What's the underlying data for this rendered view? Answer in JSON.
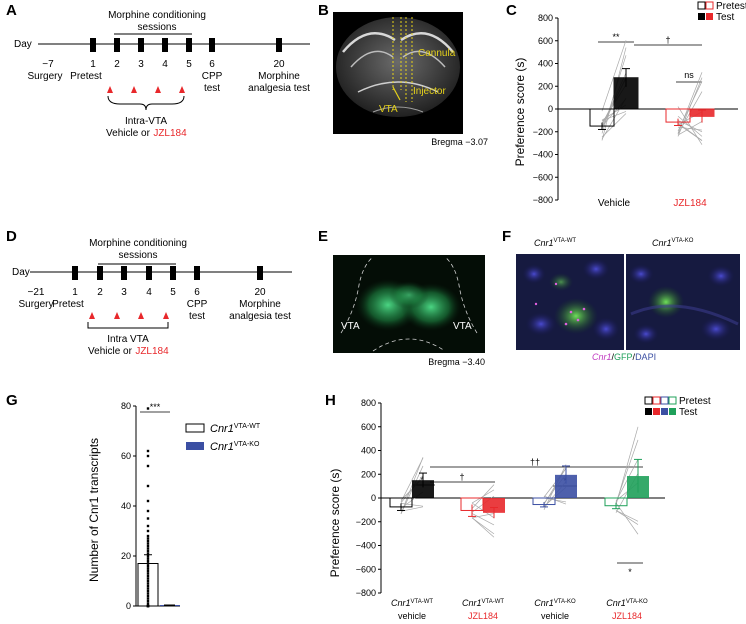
{
  "panels": {
    "A": {
      "label": "A",
      "day_label": "Day",
      "sessions_label_1": "Morphine conditioning",
      "sessions_label_2": "sessions",
      "days": [
        "−7",
        "1",
        "2",
        "3",
        "4",
        "5",
        "6",
        "20"
      ],
      "events": [
        "Surgery",
        "Pretest",
        "CPP",
        "test",
        "Morphine",
        "analgesia test"
      ],
      "treatment_1": "Intra-VTA",
      "treatment_2": "Vehicle or",
      "treatment_drug": "JZL184"
    },
    "B": {
      "label": "B",
      "cannula": "Cannula",
      "injector": "Injector",
      "region": "VTA",
      "bregma": "Bregma −3.07"
    },
    "C": {
      "label": "C",
      "ylabel": "Preference score (s)",
      "legend": [
        "Pretest",
        "Test"
      ],
      "groups": [
        "Vehicle",
        "JZL184"
      ],
      "sig": [
        "**",
        "†",
        "ns"
      ]
    },
    "D": {
      "label": "D",
      "day_label": "Day",
      "sessions_label_1": "Morphine conditioning",
      "sessions_label_2": "sessions",
      "days": [
        "−21",
        "1",
        "2",
        "3",
        "4",
        "5",
        "6",
        "20"
      ],
      "events": [
        "Surgery",
        "Pretest",
        "CPP",
        "test",
        "Morphine",
        "analgesia test"
      ],
      "treatment_1": "Intra VTA",
      "treatment_2": "Vehicle or",
      "treatment_drug": "JZL184"
    },
    "E": {
      "label": "E",
      "region_left": "VTA",
      "region_right": "VTA",
      "bregma": "Bregma −3.40"
    },
    "F": {
      "label": "F",
      "gene": "Cnr1",
      "wt_sup": "VTA-WT",
      "ko_sup": "VTA-KO",
      "stain_gene": "Cnr1",
      "stain_sep1": "/",
      "stain_gfp": "GFP",
      "stain_sep2": "/",
      "stain_dapi": "DAPI"
    },
    "G": {
      "label": "G",
      "ylabel": "Number of Cnr1 transcripts",
      "legend_gene": "Cnr1",
      "legend_wt": "VTA-WT",
      "legend_ko": "VTA-KO",
      "sig": "***"
    },
    "H": {
      "label": "H",
      "ylabel": "Preference score (s)",
      "legend": [
        "Pretest",
        "Test"
      ],
      "gene": "Cnr1",
      "group_sup": [
        "VTA-WT",
        "VTA-WT",
        "VTA-KO",
        "VTA-KO"
      ],
      "group_treat": [
        "vehicle",
        "JZL184",
        "vehicle",
        "JZL184"
      ],
      "sig": [
        "*",
        "†",
        "*",
        "††",
        "*"
      ]
    }
  },
  "colors": {
    "black": "#000000",
    "red": "#e8282b",
    "blue": "#3b4fa3",
    "green": "#1fa05a",
    "grey": "#9a9a9a",
    "yellow": "#e6d21a"
  },
  "chart_data": [
    {
      "id": "C",
      "type": "bar",
      "categories": [
        "Vehicle",
        "JZL184"
      ],
      "series": [
        {
          "name": "Pretest",
          "values": [
            -150,
            -115
          ]
        },
        {
          "name": "Test",
          "values": [
            275,
            -65
          ]
        }
      ],
      "errors": [
        [
          30,
          30
        ],
        [
          80,
          55
        ]
      ],
      "ylim": [
        -800,
        800
      ],
      "yticks": [
        -800,
        -600,
        -400,
        -200,
        0,
        200,
        400,
        600,
        800
      ],
      "grid": false,
      "legend_position": "top-right"
    },
    {
      "id": "G",
      "type": "bar",
      "categories": [
        "Cnr1 VTA-WT",
        "Cnr1 VTA-KO"
      ],
      "values": [
        17,
        0.4
      ],
      "errors": [
        3.5,
        0.3
      ],
      "ylim": [
        0,
        80
      ],
      "yticks": [
        0,
        20,
        40,
        60,
        80
      ],
      "wt_points": [
        79,
        62,
        60,
        56,
        48,
        42,
        38,
        35,
        32,
        30,
        28,
        27,
        26,
        25,
        24,
        23,
        22,
        21,
        20,
        19,
        18,
        17,
        16,
        15,
        14,
        13,
        12,
        11,
        10,
        9,
        8,
        7,
        6,
        5,
        4,
        3,
        2,
        1,
        0,
        0,
        0,
        0,
        0
      ],
      "grid": false,
      "legend_position": "top-right"
    },
    {
      "id": "H",
      "type": "bar",
      "categories": [
        "Cnr1 VTA-WT vehicle",
        "Cnr1 VTA-WT JZL184",
        "Cnr1 VTA-KO vehicle",
        "Cnr1 VTA-KO JZL184"
      ],
      "series": [
        {
          "name": "Pretest",
          "values": [
            -75,
            -105,
            -55,
            -65
          ]
        },
        {
          "name": "Test",
          "values": [
            150,
            -125,
            195,
            185
          ]
        }
      ],
      "errors": [
        [
          30,
          50,
          20,
          25
        ],
        [
          60,
          45,
          75,
          140
        ]
      ],
      "ylim": [
        -800,
        800
      ],
      "yticks": [
        -800,
        -600,
        -400,
        -200,
        0,
        200,
        400,
        600,
        800
      ],
      "grid": false,
      "legend_position": "top-right"
    }
  ]
}
